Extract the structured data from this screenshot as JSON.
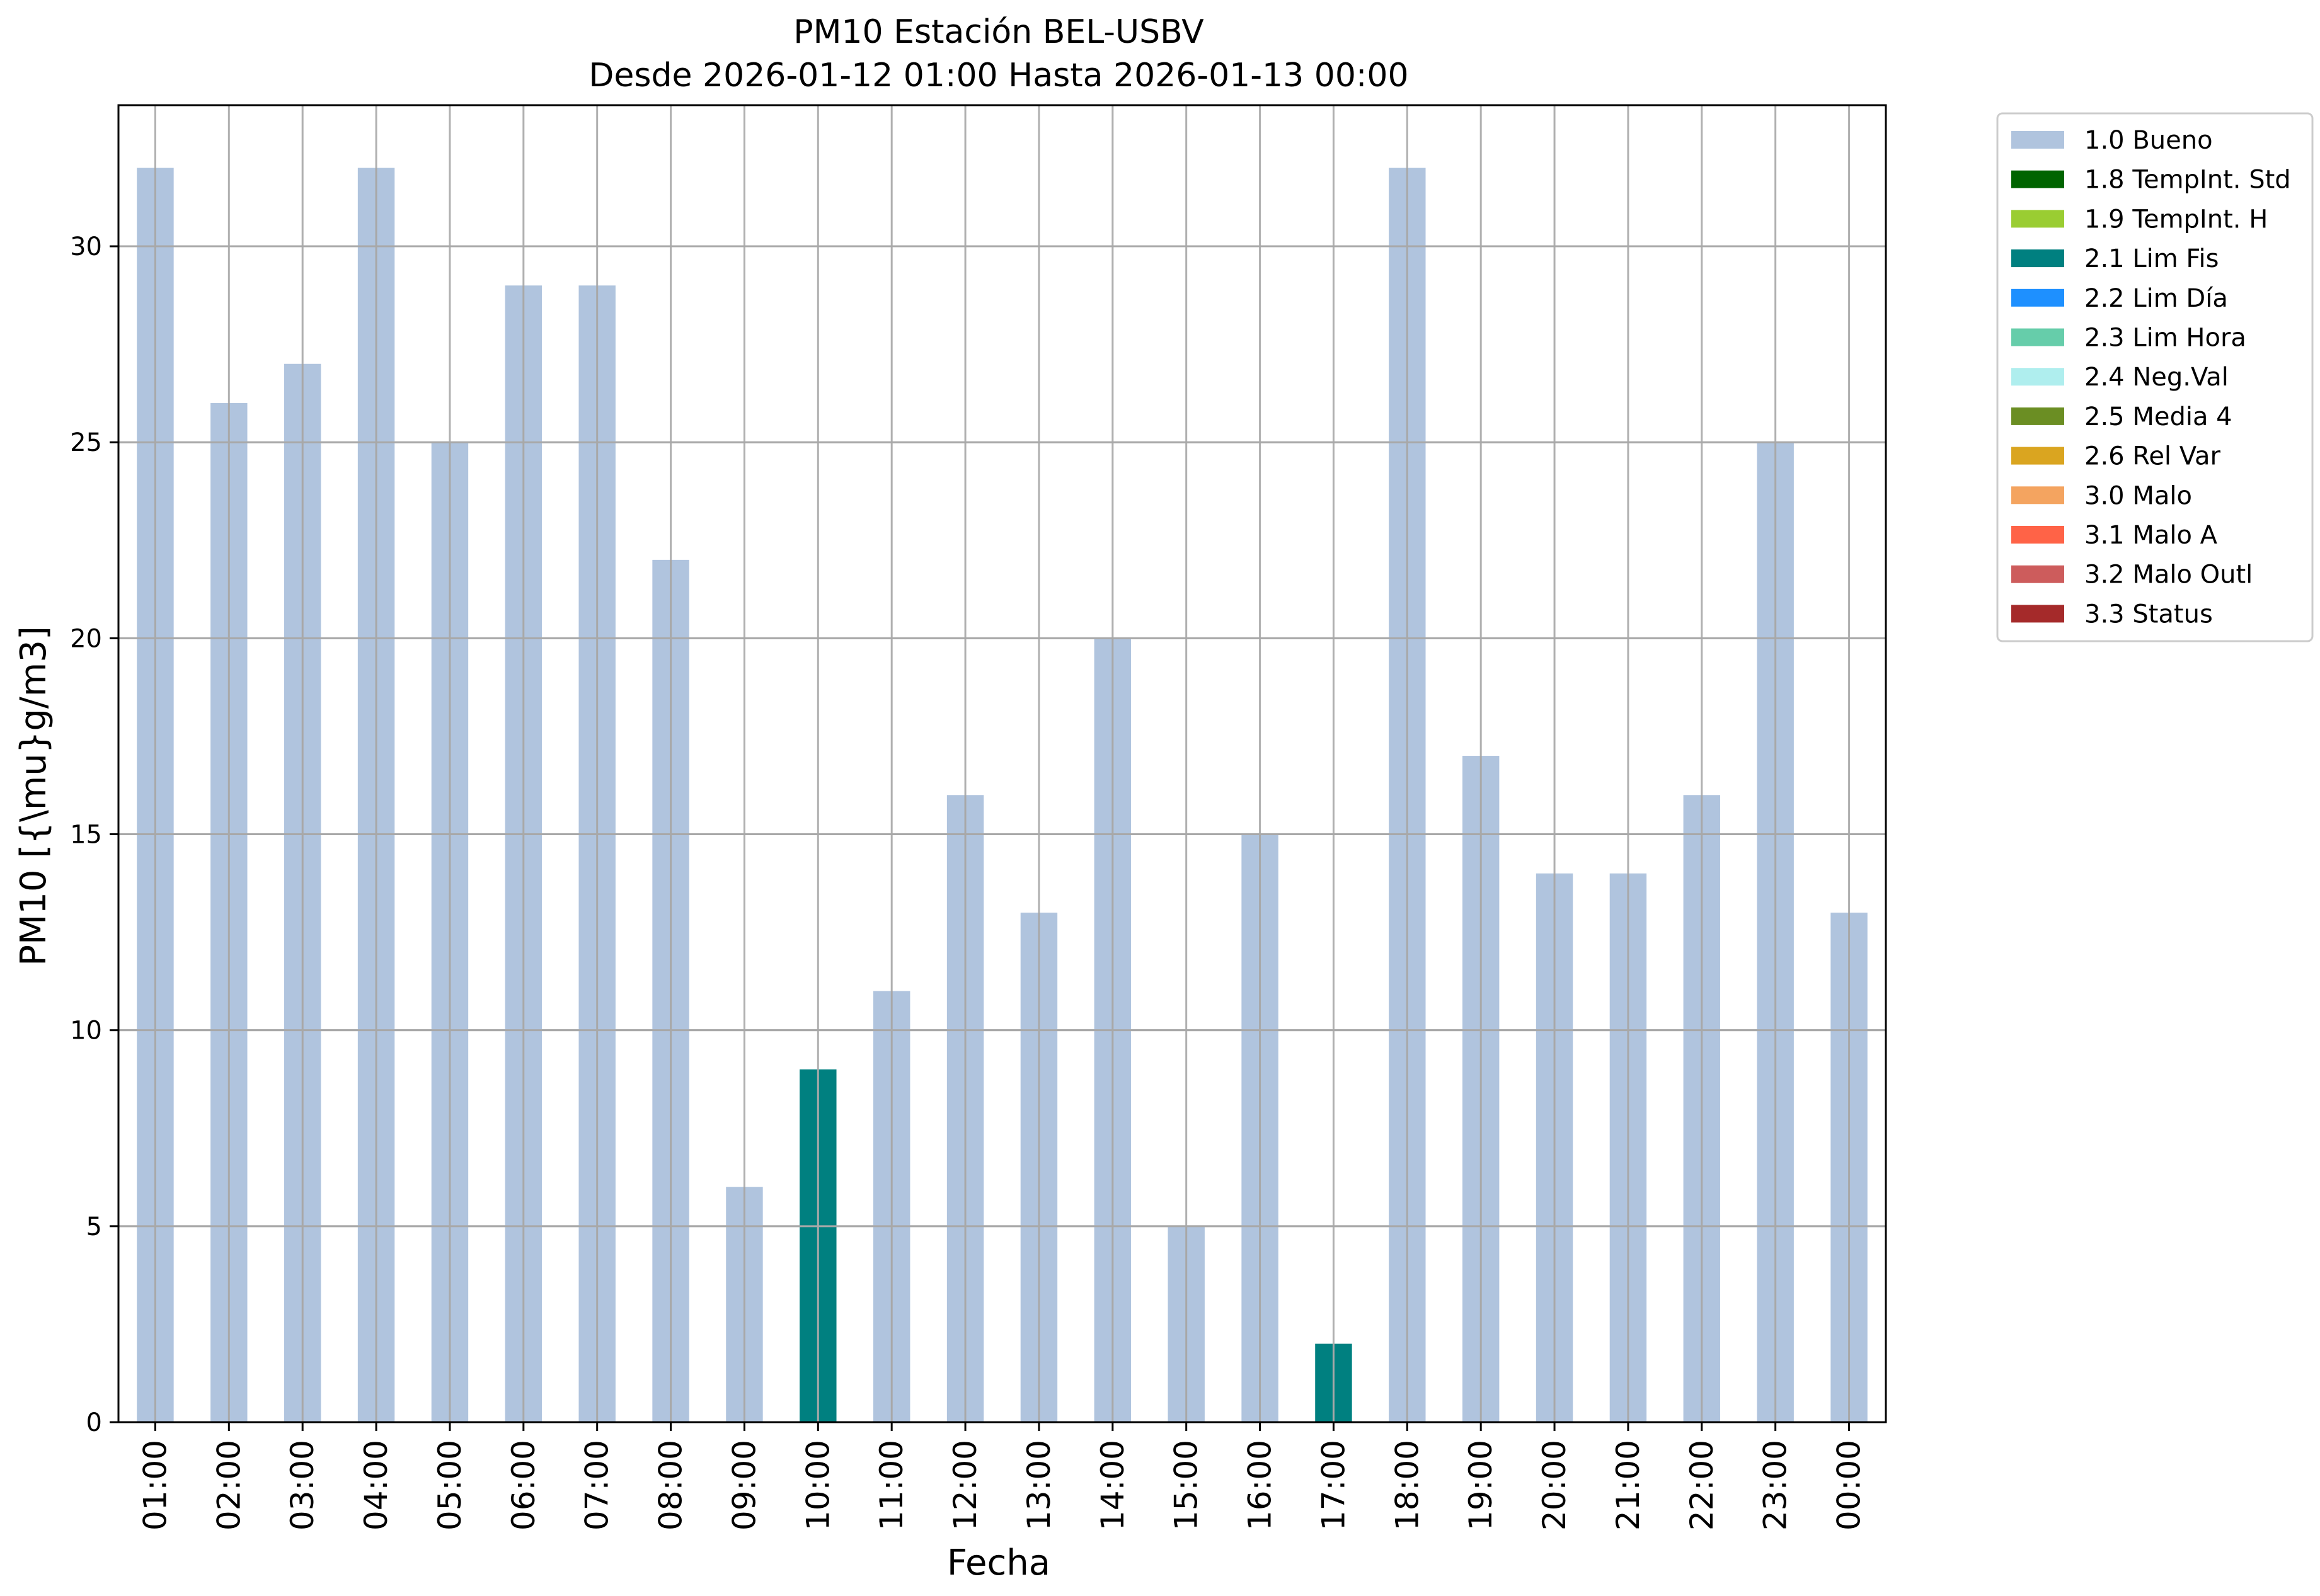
{
  "chart_data": {
    "type": "bar",
    "title": "PM10 Estación BEL-USBV",
    "subtitle": "Desde 2026-01-12 01:00 Hasta 2026-01-13 00:00",
    "xlabel": "Fecha",
    "ylabel": "PM10 [{\\mu}g/m3]",
    "ylim": [
      0,
      33.6
    ],
    "yticks": [
      0,
      5,
      10,
      15,
      20,
      25,
      30
    ],
    "grid": true,
    "legend_position": "outside-top-right",
    "categories": [
      "01:00",
      "02:00",
      "03:00",
      "04:00",
      "05:00",
      "06:00",
      "07:00",
      "08:00",
      "09:00",
      "10:00",
      "11:00",
      "12:00",
      "13:00",
      "14:00",
      "15:00",
      "16:00",
      "17:00",
      "18:00",
      "19:00",
      "20:00",
      "21:00",
      "22:00",
      "23:00",
      "00:00"
    ],
    "values": [
      32,
      26,
      27,
      32,
      25,
      29,
      29,
      22,
      6,
      9,
      11,
      16,
      13,
      20,
      5,
      15,
      2,
      32,
      17,
      14,
      14,
      16,
      25,
      13
    ],
    "flags": [
      "1.0 Bueno",
      "1.0 Bueno",
      "1.0 Bueno",
      "1.0 Bueno",
      "1.0 Bueno",
      "1.0 Bueno",
      "1.0 Bueno",
      "1.0 Bueno",
      "1.0 Bueno",
      "2.1 Lim Fis",
      "1.0 Bueno",
      "1.0 Bueno",
      "1.0 Bueno",
      "1.0 Bueno",
      "1.0 Bueno",
      "1.0 Bueno",
      "2.1 Lim Fis",
      "1.0 Bueno",
      "1.0 Bueno",
      "1.0 Bueno",
      "1.0 Bueno",
      "1.0 Bueno",
      "1.0 Bueno",
      "1.0 Bueno"
    ],
    "legend": [
      {
        "name": "1.0 Bueno",
        "color": "#b0c4de"
      },
      {
        "name": "1.8 TempInt. Std",
        "color": "#006400"
      },
      {
        "name": "1.9 TempInt. H",
        "color": "#9acd32"
      },
      {
        "name": "2.1 Lim Fis",
        "color": "#008080"
      },
      {
        "name": "2.2 Lim Día",
        "color": "#1e90ff"
      },
      {
        "name": "2.3 Lim Hora",
        "color": "#66cdaa"
      },
      {
        "name": "2.4 Neg.Val",
        "color": "#afeeee"
      },
      {
        "name": "2.5 Media 4",
        "color": "#6b8e23"
      },
      {
        "name": "2.6 Rel Var",
        "color": "#daa520"
      },
      {
        "name": "3.0 Malo",
        "color": "#f4a460"
      },
      {
        "name": "3.1 Malo A",
        "color": "#ff6347"
      },
      {
        "name": "3.2 Malo Outl",
        "color": "#cd5c5c"
      },
      {
        "name": "3.3 Status",
        "color": "#a52a2a"
      }
    ]
  }
}
